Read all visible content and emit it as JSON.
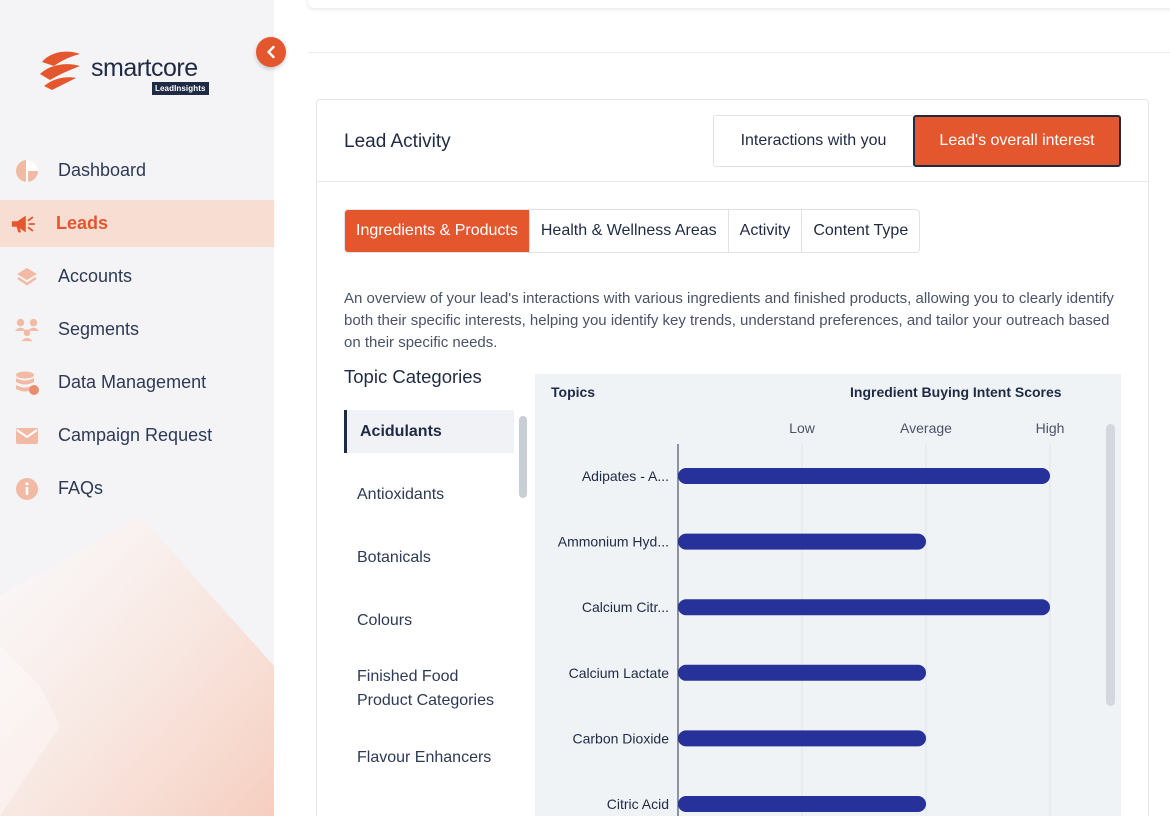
{
  "brand": {
    "name": "smartcore",
    "badge": "LeadInsights",
    "accent": "#e4572e",
    "navy": "#1f2a44",
    "bar_color": "#26329a"
  },
  "sidebar": {
    "items": [
      {
        "label": "Dashboard",
        "icon": "pie-chart-icon"
      },
      {
        "label": "Leads",
        "icon": "megaphone-icon",
        "active": true
      },
      {
        "label": "Accounts",
        "icon": "layers-icon"
      },
      {
        "label": "Segments",
        "icon": "users-group-icon"
      },
      {
        "label": "Data Management",
        "icon": "database-icon"
      },
      {
        "label": "Campaign Request",
        "icon": "mail-icon"
      },
      {
        "label": "FAQs",
        "icon": "info-icon"
      }
    ]
  },
  "card": {
    "title": "Lead Activity",
    "toggle": {
      "option1": "Interactions with you",
      "option2": "Lead's overall interest",
      "selected": "Lead's overall interest"
    },
    "tabs": [
      "Ingredients & Products",
      "Health & Wellness Areas",
      "Activity",
      "Content Type"
    ],
    "active_tab": "Ingredients & Products",
    "description": "An overview of your lead's interactions with various ingredients and finished products, allowing you to clearly identify both their specific interests, helping you identify key trends, understand preferences, and tailor your outreach based on their specific needs."
  },
  "topics": {
    "heading": "Topic Categories",
    "items": [
      "Acidulants",
      "Antioxidants",
      "Botanicals",
      "Colours",
      "Finished Food Product Categories",
      "Flavour Enhancers"
    ],
    "selected": "Acidulants"
  },
  "chart_data": {
    "type": "bar",
    "orientation": "horizontal",
    "header_left": "Topics",
    "header_right": "Ingredient Buying Intent Scores",
    "tick_labels": [
      "Low",
      "Average",
      "High"
    ],
    "categories": [
      "Adipates - A...",
      "Ammonium Hyd...",
      "Calcium Citr...",
      "Calcium Lactate",
      "Carbon Dioxide",
      "Citric Acid"
    ],
    "values": [
      3,
      2,
      3,
      2,
      2,
      2
    ],
    "xlim": [
      0,
      3
    ],
    "grid": true
  }
}
